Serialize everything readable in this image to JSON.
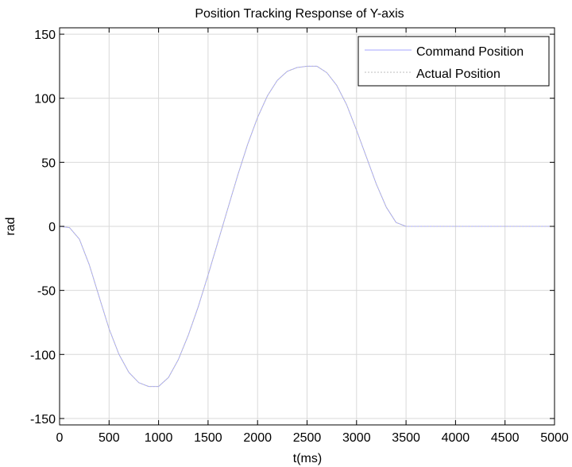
{
  "chart_data": {
    "type": "line",
    "title": "Position Tracking Response of Y-axis",
    "xlabel": "t(ms)",
    "ylabel": "rad",
    "xlim": [
      0,
      5000
    ],
    "ylim": [
      -155,
      155
    ],
    "xticks": [
      0,
      500,
      1000,
      1500,
      2000,
      2500,
      3000,
      3500,
      4000,
      4500,
      5000
    ],
    "yticks": [
      -150,
      -100,
      -50,
      0,
      50,
      100,
      150
    ],
    "grid": true,
    "legend_position": "top-right",
    "series": [
      {
        "name": "Command Position",
        "color": "#a6a6ff",
        "style": "solid",
        "x": [
          0,
          100,
          200,
          300,
          400,
          500,
          600,
          700,
          800,
          900,
          1000,
          1100,
          1200,
          1300,
          1400,
          1500,
          1600,
          1700,
          1800,
          1900,
          2000,
          2100,
          2200,
          2300,
          2400,
          2500,
          2600,
          2700,
          2800,
          2900,
          3000,
          3100,
          3200,
          3300,
          3400,
          3500,
          3600,
          3700,
          3800,
          4000,
          4500,
          5000
        ],
        "y": [
          0,
          -1,
          -10,
          -30,
          -55,
          -80,
          -100,
          -114,
          -122,
          -125,
          -125,
          -118,
          -104,
          -85,
          -63,
          -38,
          -12,
          14,
          40,
          64,
          85,
          102,
          114,
          121,
          124,
          125,
          125,
          120,
          110,
          95,
          75,
          54,
          33,
          15,
          3,
          0,
          0,
          0,
          0,
          0,
          0,
          0
        ]
      },
      {
        "name": "Actual Position",
        "color": "#bdbdbd",
        "style": "dashed",
        "x": [
          0,
          100,
          200,
          300,
          400,
          500,
          600,
          700,
          800,
          900,
          1000,
          1100,
          1200,
          1300,
          1400,
          1500,
          1600,
          1700,
          1800,
          1900,
          2000,
          2100,
          2200,
          2300,
          2400,
          2500,
          2600,
          2700,
          2800,
          2900,
          3000,
          3100,
          3200,
          3300,
          3400,
          3500,
          3600,
          3700,
          3800,
          4000,
          4500,
          5000
        ],
        "y": [
          0,
          -1,
          -10,
          -30,
          -55,
          -80,
          -100,
          -114,
          -122,
          -125,
          -125,
          -118,
          -104,
          -85,
          -63,
          -38,
          -12,
          14,
          40,
          64,
          85,
          102,
          114,
          121,
          124,
          125,
          125,
          120,
          110,
          95,
          75,
          54,
          33,
          15,
          3,
          0,
          0,
          0,
          0,
          0,
          0,
          0
        ]
      }
    ]
  }
}
